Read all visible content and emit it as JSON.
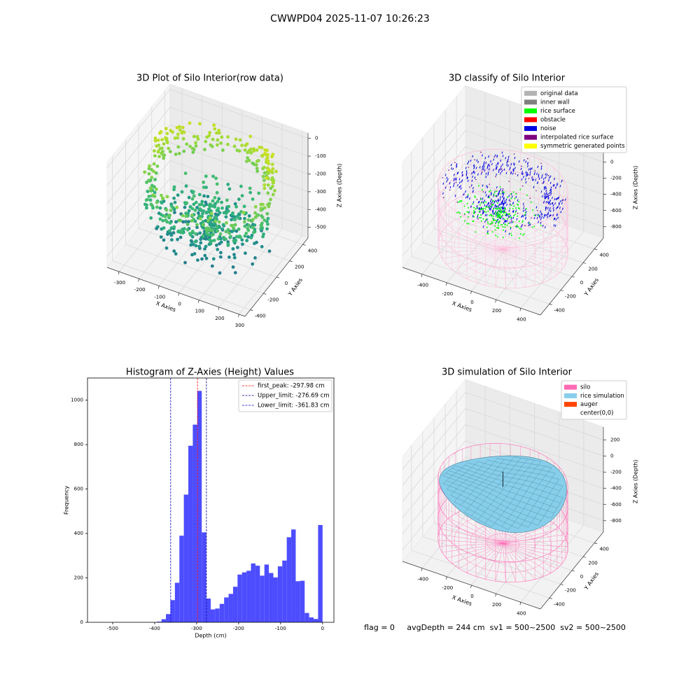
{
  "title": "CWWPD04 2025-11-07 10:26:23",
  "footer": "flag = 0     avgDepth = 244 cm  sv1 = 500~2500  sv2 = 500~2500",
  "chart_data": [
    {
      "type": "scatter3d",
      "title": "3D Plot of Silo Interior(row data)",
      "xlabel": "X Axies",
      "ylabel": "Y Axies",
      "zlabel": "Z Axies (Depth)",
      "xlim": [
        -360,
        330
      ],
      "ylim": [
        -480,
        480
      ],
      "zlim": [
        -560,
        30
      ],
      "xticks": [
        -300,
        -200,
        -100,
        0,
        100,
        200,
        300
      ],
      "yticks": [
        -400,
        -200,
        0,
        200,
        400
      ],
      "zticks": [
        0,
        -100,
        -200,
        -300,
        -400,
        -500
      ]
    },
    {
      "type": "scatter3d",
      "title": "3D classify of Silo Interior",
      "xlabel": "X Axies",
      "ylabel": "Y Axies",
      "zlabel": "Z Axies (Depth)",
      "xlim": [
        -560,
        560
      ],
      "ylim": [
        -560,
        560
      ],
      "zlim": [
        -940,
        360
      ],
      "xticks": [
        -400,
        -200,
        0,
        200,
        400
      ],
      "yticks": [
        -400,
        -200,
        0,
        200,
        400
      ],
      "zticks": [
        0,
        -200,
        -400,
        -600,
        -800
      ],
      "legend": [
        {
          "name": "original data",
          "color": "#b3b3b3"
        },
        {
          "name": "inner wall",
          "color": "#808080"
        },
        {
          "name": "rice surface",
          "color": "#00ff00"
        },
        {
          "name": "obstacle",
          "color": "#ff0000"
        },
        {
          "name": "noise",
          "color": "#0000e0"
        },
        {
          "name": "interpolated rice surface",
          "color": "#800080"
        },
        {
          "name": "symmetric generated points",
          "color": "#ffff00"
        }
      ]
    },
    {
      "type": "histogram",
      "title": "Histogram of Z-Axies (Height) Values",
      "xlabel": "Depth (cm)",
      "ylabel": "Frequency",
      "color": "#4d4dff",
      "bins": [
        -533,
        -522.34,
        -511.68,
        -501.02,
        -490.36,
        -479.7,
        -469.04,
        -458.38,
        -447.72,
        -437.06,
        -426.4,
        -415.74,
        -405.08,
        -394.42,
        -383.76,
        -373.1,
        -362.44,
        -351.78,
        -341.12,
        -330.46,
        -319.8,
        -309.14,
        -298.48,
        -287.82,
        -277.16,
        -266.5,
        -255.84,
        -245.18,
        -234.52,
        -223.86,
        -213.2,
        -202.54,
        -191.88,
        -181.22,
        -170.56,
        -159.9,
        -149.24,
        -138.58,
        -127.92,
        -117.26,
        -106.6,
        -95.94,
        -85.28,
        -74.62,
        -63.96,
        -53.3,
        -42.64,
        -31.98,
        -21.32,
        -10.66,
        0
      ],
      "values": [
        0,
        0,
        0,
        0,
        0,
        0,
        0,
        0,
        0,
        0,
        0,
        0,
        0,
        3,
        14,
        37,
        100,
        178,
        390,
        575,
        795,
        890,
        1042,
        405,
        107,
        58,
        62,
        83,
        112,
        128,
        160,
        215,
        225,
        232,
        265,
        255,
        210,
        260,
        222,
        202,
        252,
        278,
        383,
        418,
        185,
        187,
        42,
        22,
        15,
        438
      ],
      "xlim": [
        -560,
        27
      ],
      "ylim": [
        0,
        1100
      ],
      "xticks": [
        -500,
        -400,
        -300,
        -200,
        -100,
        0
      ],
      "yticks": [
        0,
        200,
        400,
        600,
        800,
        1000
      ],
      "legend_corner": "upper right",
      "vlines": [
        {
          "label": "first_peak: -297.98 cm",
          "value": -297.98,
          "color": "#ff0000"
        },
        {
          "label": "Upper_limit: -276.69 cm",
          "value": -276.69,
          "color": "#00008b"
        },
        {
          "label": "Lower_limit: -361.83 cm",
          "value": -361.83,
          "color": "#0000cd"
        }
      ]
    },
    {
      "type": "surface3d",
      "title": "3D simulation of Silo Interior",
      "xlabel": "X Axies",
      "ylabel": "Y Axies",
      "zlabel": "Z Axies (Depth)",
      "xlim": [
        -560,
        560
      ],
      "ylim": [
        -560,
        560
      ],
      "zlim": [
        -940,
        360
      ],
      "xticks": [
        -400,
        -200,
        0,
        200,
        400
      ],
      "yticks": [
        -400,
        -200,
        0,
        200,
        400
      ],
      "zticks": [
        200,
        0,
        -200,
        -400,
        -600,
        -800
      ],
      "legend": [
        {
          "name": "silo",
          "color": "#ff69b4"
        },
        {
          "name": "rice simulation",
          "color": "#87ceeb"
        },
        {
          "name": "auger",
          "color": "#ff4500"
        },
        {
          "name": "center(0,0)",
          "color": "#ffffff"
        }
      ]
    }
  ]
}
